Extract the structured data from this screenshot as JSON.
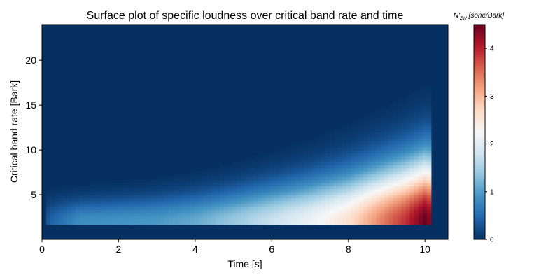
{
  "chart_data": {
    "type": "heatmap",
    "title": "Surface plot of specific loudness over critical band rate and time",
    "xlabel": "Time [s]",
    "ylabel": "Critical band rate [Bark]",
    "xlim": [
      0,
      10.6
    ],
    "ylim": [
      0,
      24
    ],
    "xticks": [
      0,
      2,
      4,
      6,
      8,
      10
    ],
    "yticks": [
      5,
      10,
      15,
      20
    ],
    "colormap": "RdBu_r",
    "colorbar": {
      "label": "N'_zw [sone/Bark]",
      "range": [
        0,
        4.5
      ],
      "ticks": [
        0,
        1,
        2,
        3,
        4
      ]
    },
    "colors": {
      "background": "#053061",
      "colormap_stops": [
        "#053061",
        "#2166ac",
        "#4393c3",
        "#92c5de",
        "#d1e5f0",
        "#f7f7f7",
        "#fddbc7",
        "#f4a582",
        "#d6604d",
        "#b2182b",
        "#67001f"
      ]
    },
    "surface": {
      "x": [
        0,
        0.2,
        1,
        2,
        3,
        4,
        5,
        6,
        7,
        8,
        9,
        9.5,
        10,
        10.1,
        10.2
      ],
      "y": [
        0,
        1.5,
        2,
        2.5,
        3,
        3.5,
        4,
        4.5,
        5,
        6,
        7,
        8,
        9,
        10,
        12,
        24
      ],
      "peak": [
        0.0,
        0.4,
        0.85,
        0.9,
        0.95,
        1.1,
        1.4,
        1.75,
        2.1,
        2.6,
        3.5,
        3.9,
        4.5,
        4.5,
        0.0
      ]
    }
  }
}
